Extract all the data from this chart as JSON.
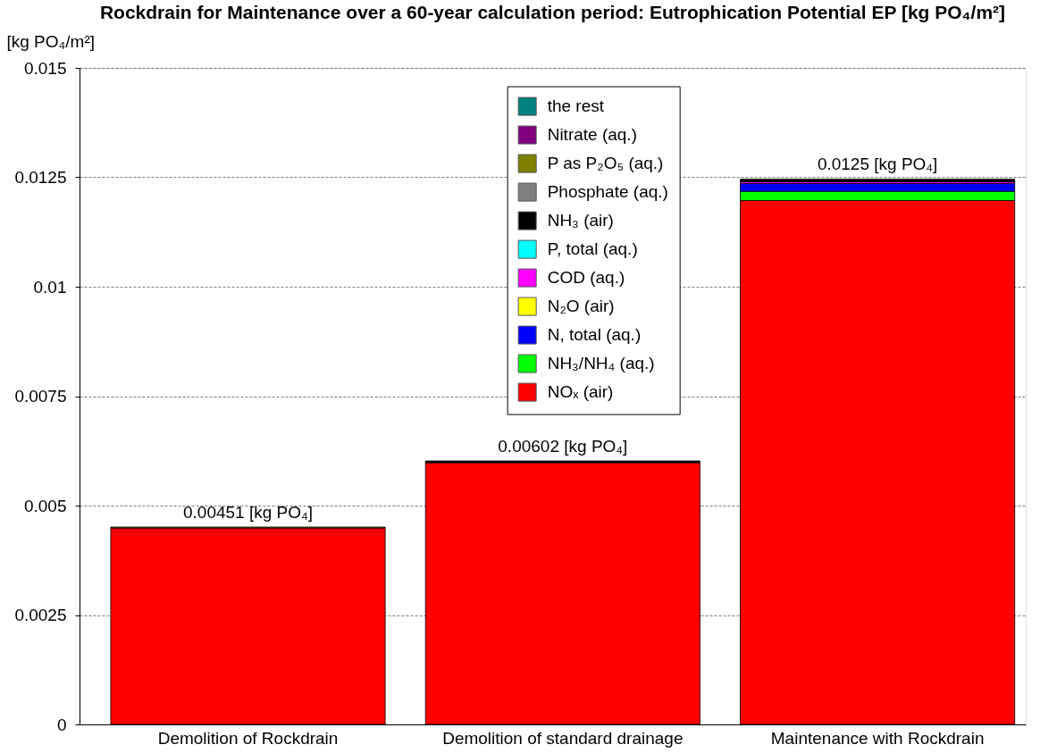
{
  "chart_data": {
    "type": "bar",
    "title": "Rockdrain for Maintenance over a 60-year calculation period: Eutrophication Potential EP [kg PO₄/m²]",
    "ylabel": "[kg PO₄/m²]",
    "categories": [
      "Demolition of Rockdrain",
      "Demolition of standard drainage",
      "Maintenance with Rockdrain"
    ],
    "stacked": true,
    "series": [
      {
        "name": "NOₓ (air)",
        "color": "#ff0000",
        "values": [
          0.00449,
          0.00598,
          0.01197
        ]
      },
      {
        "name": "NH₃/NH₄ (aq.)",
        "color": "#00ff00",
        "values": [
          0,
          0,
          0.00021
        ]
      },
      {
        "name": "N, total (aq.)",
        "color": "#0000ff",
        "values": [
          0,
          0,
          0.00018
        ]
      },
      {
        "name": "N₂O (air)",
        "color": "#ffff00",
        "values": [
          0,
          0,
          0
        ]
      },
      {
        "name": "COD (aq.)",
        "color": "#ff00ff",
        "values": [
          0,
          0,
          4e-05
        ]
      },
      {
        "name": "P, total (aq.)",
        "color": "#00ffff",
        "values": [
          0,
          0,
          0
        ]
      },
      {
        "name": "NH₃ (air)",
        "color": "#000000",
        "values": [
          0,
          4e-05,
          4e-05
        ]
      },
      {
        "name": "Phosphate (aq.)",
        "color": "#808080",
        "values": [
          0,
          0,
          0
        ]
      },
      {
        "name": "P as P₂O₅ (aq.)",
        "color": "#808000",
        "values": [
          2e-05,
          0,
          0
        ]
      },
      {
        "name": "Nitrate (aq.)",
        "color": "#800080",
        "values": [
          0,
          0,
          2e-05
        ]
      },
      {
        "name": "the rest",
        "color": "#008080",
        "values": [
          0,
          0,
          0
        ]
      }
    ],
    "ylim": [
      0,
      0.015
    ],
    "yticks": [
      0,
      0.0025,
      0.005,
      0.0075,
      0.01,
      0.0125,
      0.015
    ],
    "grid": "y",
    "legend": "top",
    "totals": [
      "0.00451 [kg PO₄]",
      "0.00602 [kg PO₄]",
      "0.0125 [kg PO₄]"
    ]
  }
}
